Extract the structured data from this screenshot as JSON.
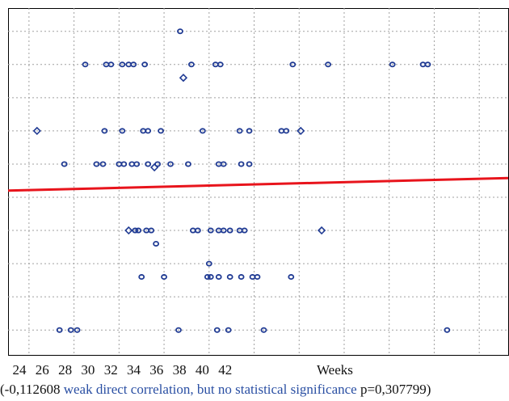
{
  "chart_data": {
    "type": "scatter",
    "xlim": [
      22.7,
      53.8
    ],
    "ylim": [
      0.25,
      10.7
    ],
    "x_ticks": [
      "24",
      "26",
      "28",
      "30",
      "32",
      "34",
      "36",
      "38",
      "40",
      "42"
    ],
    "x_unit": "Weeks",
    "grid": true,
    "colors": {
      "points": "#1f3a93",
      "trend": "#e8141c",
      "grid": "#a0a0a0",
      "frame": "#000000"
    },
    "series": [
      {
        "marker": "circle",
        "points": [
          [
            33.4,
            10
          ],
          [
            27.5,
            9
          ],
          [
            28.8,
            9
          ],
          [
            29.1,
            9
          ],
          [
            29.8,
            9
          ],
          [
            30.2,
            9
          ],
          [
            30.5,
            9
          ],
          [
            31.2,
            9
          ],
          [
            34.1,
            9
          ],
          [
            35.6,
            9
          ],
          [
            35.9,
            9
          ],
          [
            40.4,
            9
          ],
          [
            42.6,
            9
          ],
          [
            46.6,
            9
          ],
          [
            48.5,
            9
          ],
          [
            48.8,
            9
          ],
          [
            28.7,
            7
          ],
          [
            29.8,
            7
          ],
          [
            31.1,
            7
          ],
          [
            31.4,
            7
          ],
          [
            32.2,
            7
          ],
          [
            34.8,
            7
          ],
          [
            37.1,
            7
          ],
          [
            37.7,
            7
          ],
          [
            39.7,
            7
          ],
          [
            40.0,
            7
          ],
          [
            26.2,
            6
          ],
          [
            28.2,
            6
          ],
          [
            28.6,
            6
          ],
          [
            29.6,
            6
          ],
          [
            29.9,
            6
          ],
          [
            30.4,
            6
          ],
          [
            30.7,
            6
          ],
          [
            31.4,
            6
          ],
          [
            32.0,
            6
          ],
          [
            32.8,
            6
          ],
          [
            33.9,
            6
          ],
          [
            35.8,
            6
          ],
          [
            36.1,
            6
          ],
          [
            37.2,
            6
          ],
          [
            37.7,
            6
          ],
          [
            30.6,
            4
          ],
          [
            30.8,
            4
          ],
          [
            31.3,
            4
          ],
          [
            31.6,
            4
          ],
          [
            34.2,
            4
          ],
          [
            34.5,
            4
          ],
          [
            35.3,
            4
          ],
          [
            35.8,
            4
          ],
          [
            36.1,
            4
          ],
          [
            36.5,
            4
          ],
          [
            37.1,
            4
          ],
          [
            37.4,
            4
          ],
          [
            31.9,
            3.6
          ],
          [
            35.2,
            3
          ],
          [
            31.0,
            2.6
          ],
          [
            32.4,
            2.6
          ],
          [
            35.1,
            2.6
          ],
          [
            35.3,
            2.6
          ],
          [
            35.8,
            2.6
          ],
          [
            36.5,
            2.6
          ],
          [
            37.2,
            2.6
          ],
          [
            37.9,
            2.6
          ],
          [
            38.2,
            2.6
          ],
          [
            40.3,
            2.6
          ],
          [
            25.9,
            1
          ],
          [
            26.6,
            1
          ],
          [
            27.0,
            1
          ],
          [
            33.3,
            1
          ],
          [
            35.7,
            1
          ],
          [
            36.4,
            1
          ],
          [
            38.6,
            1
          ],
          [
            50.0,
            1
          ]
        ]
      },
      {
        "marker": "diamond",
        "points": [
          [
            33.6,
            8.6
          ],
          [
            24.5,
            7
          ],
          [
            40.9,
            7
          ],
          [
            30.2,
            4
          ],
          [
            42.2,
            4
          ],
          [
            31.8,
            5.9
          ]
        ]
      },
      {
        "name": "",
        "type": "line",
        "points": [
          [
            22.7,
            5.2
          ],
          [
            53.8,
            5.58
          ]
        ]
      }
    ]
  },
  "caption": {
    "part1": "(-0,112608 ",
    "part2": "weak direct correlation, but no statistical significance",
    "part3": " p=0,307799)"
  }
}
